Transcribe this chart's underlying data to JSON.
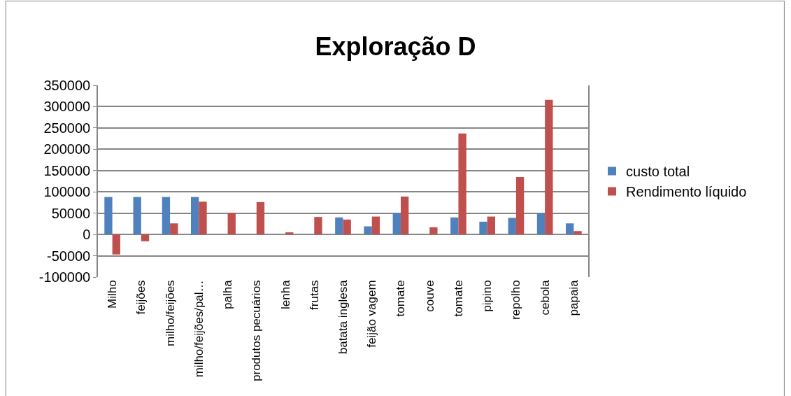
{
  "chart_data": {
    "type": "bar",
    "title": "Exploração D",
    "categories": [
      "Milho",
      "feijões",
      "milho/feijões",
      "milho/feijões/pal…",
      "palha",
      "produtos pecuários",
      "lenha",
      "frutas",
      "batata inglesa",
      "feijão vagem",
      "tomate",
      "couve",
      "tomate",
      "pipino",
      "repolho",
      "cebola",
      "papaia"
    ],
    "series": [
      {
        "name": "custo total",
        "color": "#4f81bd",
        "values": [
          88000,
          88000,
          88000,
          88000,
          null,
          null,
          null,
          null,
          40000,
          19000,
          51000,
          null,
          40000,
          30000,
          39000,
          49000,
          26000
        ]
      },
      {
        "name": "Rendimento líquido",
        "color": "#c0504d",
        "values": [
          -47000,
          -16000,
          26000,
          77000,
          51000,
          76000,
          5000,
          41000,
          35000,
          42000,
          89000,
          17000,
          237000,
          42000,
          135000,
          316000,
          8000
        ]
      }
    ],
    "ylim": [
      -100000,
      350000
    ],
    "yticks": [
      -100000,
      -50000,
      0,
      50000,
      100000,
      150000,
      200000,
      250000,
      300000,
      350000
    ],
    "grid": "y",
    "legend": "right"
  }
}
